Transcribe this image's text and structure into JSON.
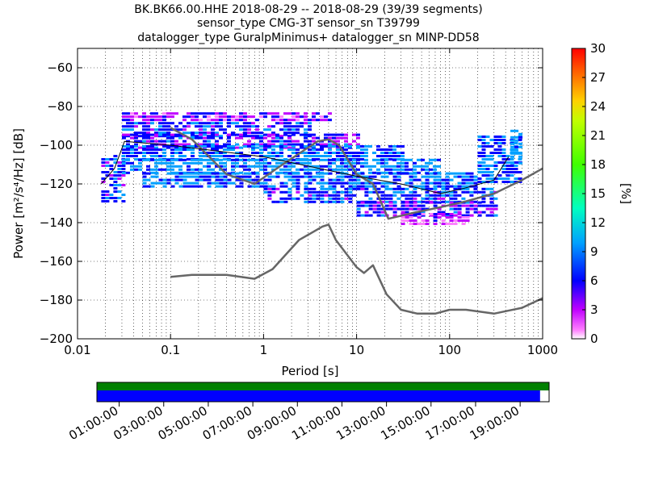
{
  "title_lines": [
    "BK.BK66.00.HHE   2018-08-29 -- 2018-08-29  (39/39 segments)",
    "sensor_type CMG-3T sensor_sn T39799",
    "datalogger_type GuralpMinimus+ datalogger_sn MINP-DD58"
  ],
  "chart_data": {
    "type": "heatmap",
    "xlabel": "Period [s]",
    "ylabel": "Power [m²/s⁴/Hz] [dB]",
    "xscale": "log",
    "xlim": [
      0.01,
      1000
    ],
    "ylim": [
      -200,
      -50
    ],
    "xticks": [
      0.01,
      0.1,
      1,
      10,
      100,
      1000
    ],
    "xtick_labels": [
      "0.01",
      "0.1",
      "1",
      "10",
      "100",
      "1000"
    ],
    "yticks": [
      -200,
      -180,
      -160,
      -140,
      -120,
      -100,
      -80,
      -60
    ],
    "ytick_labels": [
      "−200",
      "−180",
      "−160",
      "−140",
      "−120",
      "−100",
      "−80",
      "−60"
    ],
    "grid": true,
    "colorbar": {
      "label": "[%]",
      "range": [
        0,
        30
      ],
      "ticks": [
        0,
        3,
        6,
        9,
        12,
        15,
        18,
        21,
        24,
        27,
        30
      ],
      "tick_labels": [
        "0",
        "3",
        "6",
        "9",
        "12",
        "15",
        "18",
        "21",
        "24",
        "27",
        "30"
      ]
    },
    "model_curves": {
      "high_noise_model": [
        [
          0.1,
          -91
        ],
        [
          0.17,
          -97
        ],
        [
          0.4,
          -115
        ],
        [
          0.8,
          -120
        ],
        [
          1.6,
          -110
        ],
        [
          3.8,
          -98
        ],
        [
          5,
          -97
        ],
        [
          6.5,
          -100
        ],
        [
          10,
          -115
        ],
        [
          15,
          -120
        ],
        [
          22,
          -138
        ],
        [
          40,
          -135
        ],
        [
          80,
          -132
        ],
        [
          150,
          -129
        ],
        [
          300,
          -125
        ],
        [
          600,
          -118
        ],
        [
          1000,
          -112
        ]
      ],
      "low_noise_model": [
        [
          0.1,
          -168
        ],
        [
          0.17,
          -167
        ],
        [
          0.4,
          -167
        ],
        [
          0.8,
          -169
        ],
        [
          1.25,
          -164
        ],
        [
          2.4,
          -149
        ],
        [
          4.3,
          -142
        ],
        [
          5,
          -141
        ],
        [
          6,
          -149
        ],
        [
          10,
          -163
        ],
        [
          12,
          -166
        ],
        [
          15,
          -162
        ],
        [
          21,
          -177
        ],
        [
          30,
          -185
        ],
        [
          45,
          -187
        ],
        [
          70,
          -187
        ],
        [
          100,
          -185
        ],
        [
          150,
          -185
        ],
        [
          300,
          -187
        ],
        [
          600,
          -184
        ],
        [
          1000,
          -179
        ]
      ]
    },
    "mode_curve": [
      [
        0.018,
        -120
      ],
      [
        0.025,
        -112
      ],
      [
        0.032,
        -98
      ],
      [
        0.1,
        -100
      ],
      [
        1,
        -106
      ],
      [
        5,
        -113
      ],
      [
        10,
        -116
      ],
      [
        30,
        -120
      ],
      [
        80,
        -125
      ],
      [
        150,
        -122
      ],
      [
        300,
        -118
      ],
      [
        430,
        -106
      ]
    ],
    "psd_bands": [
      {
        "x0": 0.03,
        "x1": 5,
        "y0": -87,
        "y1": -83,
        "p": 3
      },
      {
        "x0": 0.03,
        "x1": 3,
        "y0": -95,
        "y1": -88,
        "p": 5
      },
      {
        "x0": 0.03,
        "x1": 10,
        "y0": -102,
        "y1": -94,
        "p": 4
      },
      {
        "x0": 0.03,
        "x1": 30,
        "y0": -108,
        "y1": -100,
        "p": 6
      },
      {
        "x0": 0.018,
        "x1": 0.03,
        "y0": -130,
        "y1": -105,
        "p": 5
      },
      {
        "x0": 0.03,
        "x1": 80,
        "y0": -115,
        "y1": -107,
        "p": 7
      },
      {
        "x0": 0.05,
        "x1": 200,
        "y0": -122,
        "y1": -114,
        "p": 6
      },
      {
        "x0": 1,
        "x1": 300,
        "y0": -130,
        "y1": -122,
        "p": 5
      },
      {
        "x0": 10,
        "x1": 300,
        "y0": -137,
        "y1": -129,
        "p": 4
      },
      {
        "x0": 30,
        "x1": 150,
        "y0": -141,
        "y1": -135,
        "p": 2
      },
      {
        "x0": 200,
        "x1": 600,
        "y0": -120,
        "y1": -95,
        "p": 6
      },
      {
        "x0": 450,
        "x1": 600,
        "y0": -110,
        "y1": -92,
        "p": 8
      }
    ],
    "timeline": {
      "tick_labels": [
        "01:00:00",
        "03:00:00",
        "05:00:00",
        "07:00:00",
        "09:00:00",
        "11:00:00",
        "13:00:00",
        "15:00:00",
        "17:00:00",
        "19:00:00"
      ],
      "start_hour": 0.0,
      "end_hour": 20.3,
      "tick_hours": [
        1,
        3,
        5,
        7,
        9,
        11,
        13,
        15,
        17,
        19
      ],
      "data_coverage_color": "#008000",
      "psd_coverage_color": "#0000ff",
      "psd_coverage_fraction": 0.98
    }
  }
}
